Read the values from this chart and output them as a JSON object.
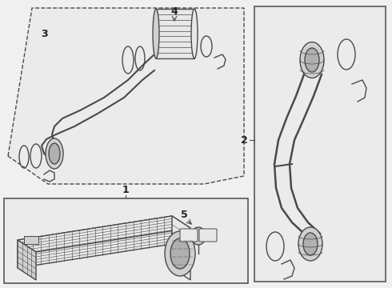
{
  "fig_bg": "#f0f0f0",
  "line_color": "#4a4a4a",
  "fill_light": "#e8e8e8",
  "fill_white": "#ffffff",
  "fill_med": "#d0d0d0",
  "fill_dark": "#b0b0b0",
  "label_color": "#222222",
  "poly3_fill": "#ebebeb",
  "box1_fill": "#ebebeb",
  "box2_fill": "#ebebeb"
}
